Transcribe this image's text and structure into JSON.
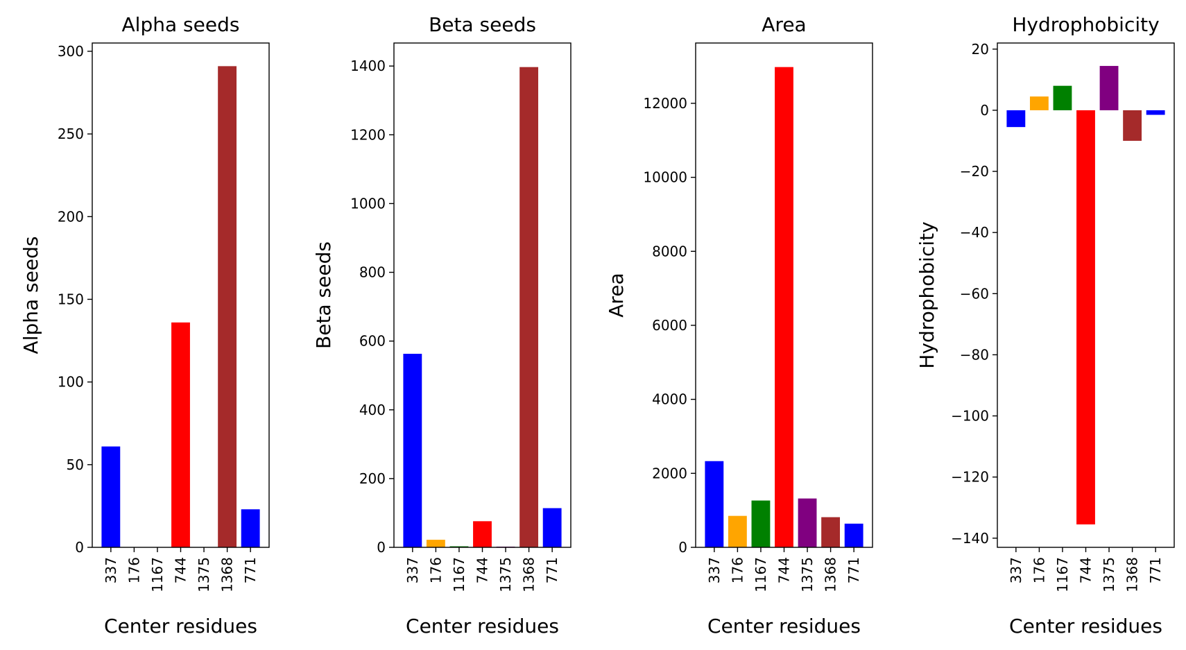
{
  "chart_data": [
    {
      "type": "bar",
      "title": "Alpha seeds",
      "xlabel": "Center residues",
      "ylabel": "Alpha seeds",
      "categories": [
        "337",
        "176",
        "1167",
        "744",
        "1375",
        "1368",
        "771"
      ],
      "values": [
        61,
        0,
        0,
        136,
        0,
        291,
        23
      ],
      "colors": [
        "#0000ff",
        "#ffa500",
        "#008000",
        "#ff0000",
        "#800080",
        "#a52a2a",
        "#0000ff"
      ],
      "ylim": [
        0,
        305
      ],
      "yticks": [
        0,
        50,
        100,
        150,
        200,
        250,
        300
      ],
      "ytick_labels": [
        "0",
        "50",
        "100",
        "150",
        "200",
        "250",
        "300"
      ]
    },
    {
      "type": "bar",
      "title": "Beta seeds",
      "xlabel": "Center residues",
      "ylabel": "Beta seeds",
      "categories": [
        "337",
        "176",
        "1167",
        "744",
        "1375",
        "1368",
        "771"
      ],
      "values": [
        563,
        22,
        3,
        76,
        2,
        1397,
        114
      ],
      "colors": [
        "#0000ff",
        "#ffa500",
        "#008000",
        "#ff0000",
        "#800080",
        "#a52a2a",
        "#0000ff"
      ],
      "ylim": [
        0,
        1467
      ],
      "yticks": [
        0,
        200,
        400,
        600,
        800,
        1000,
        1200,
        1400
      ],
      "ytick_labels": [
        "0",
        "200",
        "400",
        "600",
        "800",
        "1000",
        "1200",
        "1400"
      ]
    },
    {
      "type": "bar",
      "title": "Area",
      "xlabel": "Center residues",
      "ylabel": "Area",
      "categories": [
        "337",
        "176",
        "1167",
        "744",
        "1375",
        "1368",
        "771"
      ],
      "values": [
        2330,
        850,
        1265,
        12980,
        1320,
        815,
        640
      ],
      "colors": [
        "#0000ff",
        "#ffa500",
        "#008000",
        "#ff0000",
        "#800080",
        "#a52a2a",
        "#0000ff"
      ],
      "ylim": [
        0,
        13630
      ],
      "yticks": [
        0,
        2000,
        4000,
        6000,
        8000,
        10000,
        12000
      ],
      "ytick_labels": [
        "0",
        "2000",
        "4000",
        "6000",
        "8000",
        "10000",
        "12000"
      ]
    },
    {
      "type": "bar",
      "title": "Hydrophobicity",
      "xlabel": "Center residues",
      "ylabel": "Hydrophobicity",
      "categories": [
        "337",
        "176",
        "1167",
        "744",
        "1375",
        "1368",
        "771"
      ],
      "values": [
        -5.5,
        4.5,
        8,
        -135.5,
        14.5,
        -10,
        -1.5
      ],
      "colors": [
        "#0000ff",
        "#ffa500",
        "#008000",
        "#ff0000",
        "#800080",
        "#a52a2a",
        "#0000ff"
      ],
      "ylim": [
        -143,
        22
      ],
      "yticks": [
        -140,
        -120,
        -100,
        -80,
        -60,
        -40,
        -20,
        0,
        20
      ],
      "ytick_labels": [
        "−140",
        "−120",
        "−100",
        "−80",
        "−60",
        "−40",
        "−20",
        "0",
        "20"
      ]
    }
  ]
}
